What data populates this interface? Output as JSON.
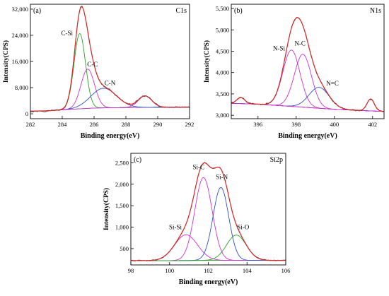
{
  "chart_data": [
    {
      "type": "line",
      "panel_label": "(a)",
      "element_label": "C1s",
      "xlabel": "Binding energy(eV)",
      "ylabel": "Intensity(CPS)",
      "xlim": [
        282,
        292
      ],
      "ylim": [
        -1500,
        33500
      ],
      "x_ticks": [
        "282",
        "284",
        "286",
        "288",
        "290",
        "292"
      ],
      "y_ticks": [
        "0",
        "8,000",
        "16,000",
        "24,000",
        "32,000"
      ],
      "baseline": [
        [
          282,
          800
        ],
        [
          283,
          900
        ],
        [
          284,
          1200
        ],
        [
          285,
          1500
        ],
        [
          286,
          1750
        ],
        [
          287,
          1850
        ],
        [
          288,
          1900
        ],
        [
          289,
          1950
        ],
        [
          290,
          2000
        ],
        [
          291,
          2000
        ],
        [
          292,
          2000
        ]
      ],
      "series": [
        {
          "name": "C-Si",
          "center": 285.1,
          "fwhm": 0.85,
          "height": 23000,
          "color": "#2ca02c"
        },
        {
          "name": "C-C",
          "center": 285.6,
          "fwhm": 1.0,
          "height": 12000,
          "color": "#cc33cc"
        },
        {
          "name": "C-N",
          "center": 286.6,
          "fwhm": 1.9,
          "height": 6000,
          "color": "#2f4fd0"
        },
        {
          "name": "",
          "center": 289.2,
          "fwhm": 1.0,
          "height": 3500,
          "color": "#cc33cc"
        }
      ],
      "annotations": [
        {
          "text": "C-Si",
          "x": 284.3,
          "y": 24000
        },
        {
          "text": "C-C",
          "x": 285.9,
          "y": 14500
        },
        {
          "text": "C-N",
          "x": 287.0,
          "y": 8800
        }
      ],
      "noise": 400,
      "grid": false
    },
    {
      "type": "line",
      "panel_label": "(b)",
      "element_label": "N1s",
      "xlabel": "Binding energy(eV)",
      "ylabel": "Intensity(CPS)",
      "xlim": [
        394.6,
        402.6
      ],
      "ylim": [
        2920,
        5600
      ],
      "x_ticks": [
        "396",
        "398",
        "400",
        "402"
      ],
      "y_ticks": [
        "3,000",
        "3,500",
        "4,000",
        "4,500",
        "5,000",
        "5,500"
      ],
      "baseline": [
        [
          394.6,
          3280
        ],
        [
          396,
          3260
        ],
        [
          398,
          3200
        ],
        [
          400,
          3140
        ],
        [
          402,
          3100
        ],
        [
          402.6,
          3090
        ]
      ],
      "series": [
        {
          "name": "N-Si",
          "center": 397.75,
          "fwhm": 1.05,
          "height": 1320,
          "color": "#cc33cc"
        },
        {
          "name": "N-C",
          "center": 398.35,
          "fwhm": 1.05,
          "height": 1240,
          "color": "#cc33cc"
        },
        {
          "name": "N=C",
          "center": 399.2,
          "fwhm": 1.25,
          "height": 490,
          "color": "#2f4fd0"
        },
        {
          "name": "",
          "center": 395.1,
          "fwhm": 0.5,
          "height": 140,
          "color": "#cc33cc"
        },
        {
          "name": "",
          "center": 401.9,
          "fwhm": 0.45,
          "height": 280,
          "color": "#cc33cc"
        }
      ],
      "annotations": [
        {
          "text": "N-Si",
          "x": 397.1,
          "y": 4520
        },
        {
          "text": "N-C",
          "x": 398.2,
          "y": 4630
        },
        {
          "text": "N=C",
          "x": 399.9,
          "y": 3700
        }
      ],
      "noise": 30,
      "grid": false
    },
    {
      "type": "line",
      "panel_label": "(c)",
      "element_label": "Si2p",
      "xlabel": "Binding energy(eV)",
      "ylabel": "Intensity(CPS)",
      "xlim": [
        98,
        106
      ],
      "ylim": [
        120,
        2720
      ],
      "x_ticks": [
        "98",
        "100",
        "102",
        "104",
        "106"
      ],
      "y_ticks": [
        "500",
        "1,000",
        "1,500",
        "2,000",
        "2,500"
      ],
      "baseline": [
        [
          98,
          220
        ],
        [
          100,
          220
        ],
        [
          102,
          225
        ],
        [
          104,
          225
        ],
        [
          106,
          225
        ]
      ],
      "series": [
        {
          "name": "Si-Si",
          "center": 100.85,
          "fwhm": 1.4,
          "height": 600,
          "color": "#cc33cc"
        },
        {
          "name": "Si-C",
          "center": 101.75,
          "fwhm": 1.05,
          "height": 1930,
          "color": "#cc33cc"
        },
        {
          "name": "Si-N",
          "center": 102.65,
          "fwhm": 0.95,
          "height": 1700,
          "color": "#2f4fd0"
        },
        {
          "name": "Si-O",
          "center": 103.45,
          "fwhm": 1.2,
          "height": 590,
          "color": "#2ca02c"
        }
      ],
      "annotations": [
        {
          "text": "Si-Si",
          "x": 100.3,
          "y": 950
        },
        {
          "text": "Si-C",
          "x": 101.5,
          "y": 2350
        },
        {
          "text": "Si-N",
          "x": 102.7,
          "y": 2120
        },
        {
          "text": "Si-O",
          "x": 103.8,
          "y": 950
        }
      ],
      "noise": 22,
      "grid": false
    }
  ]
}
